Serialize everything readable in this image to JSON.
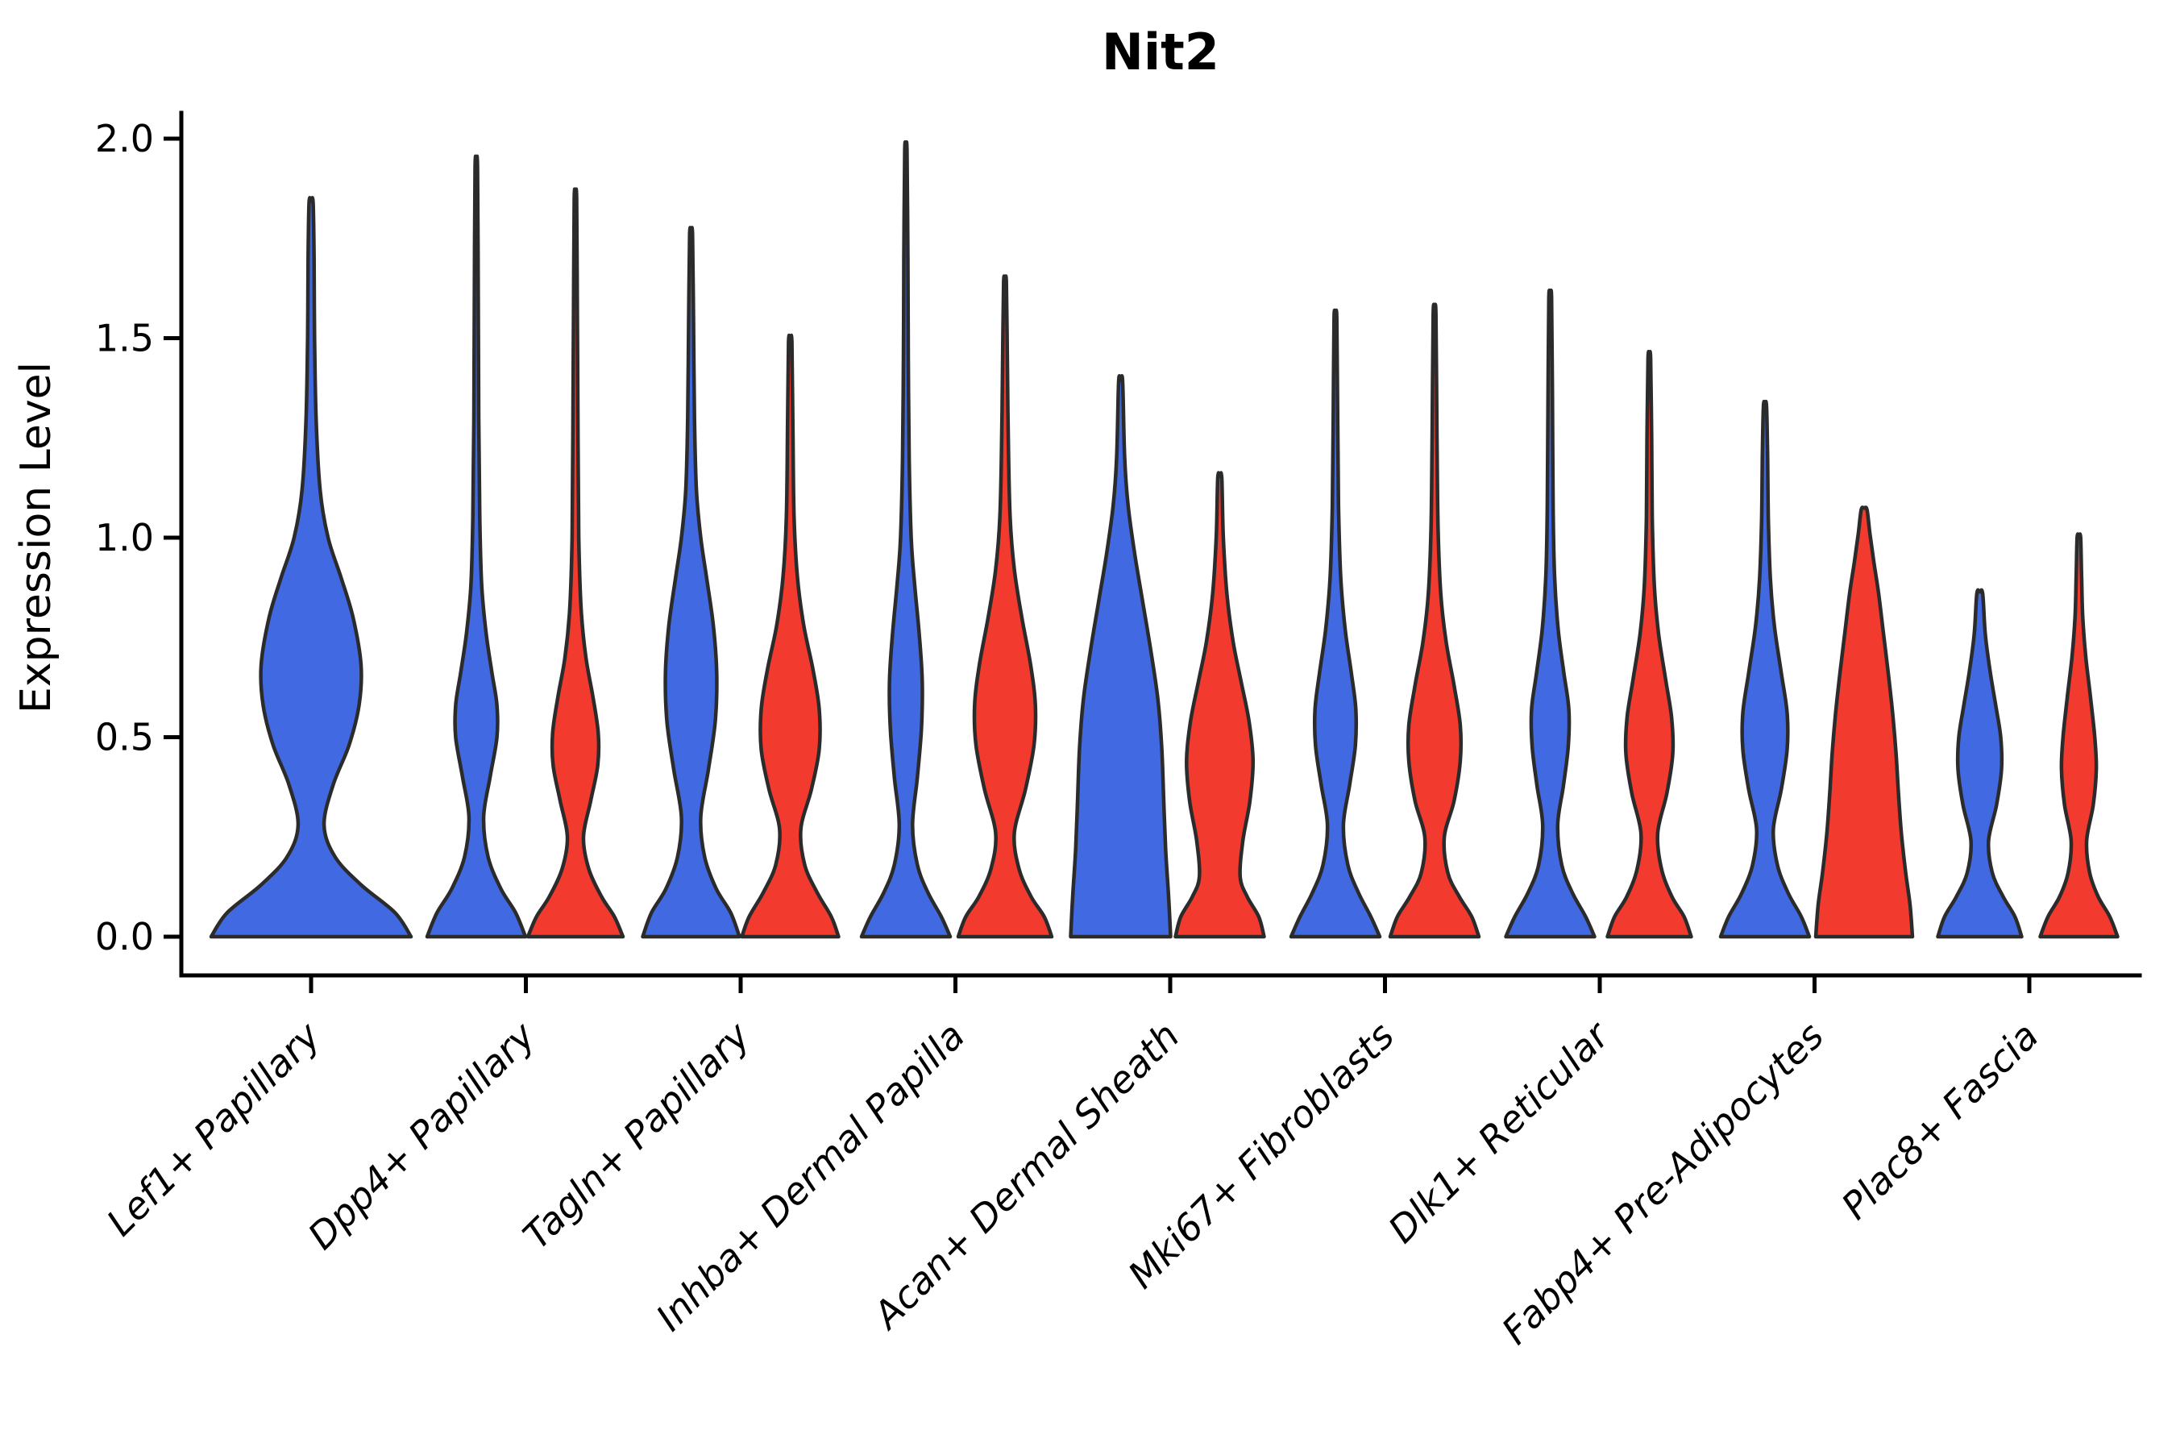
{
  "title": "Nit2",
  "axes": {
    "ylabel": "Expression Level",
    "yticks": [
      {
        "label": "0.0",
        "value": 0.0
      },
      {
        "label": "0.5",
        "value": 0.5
      },
      {
        "label": "1.0",
        "value": 1.0
      },
      {
        "label": "1.5",
        "value": 1.5
      },
      {
        "label": "2.0",
        "value": 2.0
      }
    ],
    "ylim": [
      0.0,
      2.065
    ],
    "grid": false,
    "legend": "none"
  },
  "colors": {
    "blue_fill": "#4169E1",
    "red_fill": "#F23A2E",
    "violin_outline": "#2B2B2B",
    "axis_color": "#000000",
    "background": "#FFFFFF"
  },
  "chart_data": {
    "type": "violin",
    "title": "Nit2",
    "ylabel": "Expression Level",
    "ylim": [
      0.0,
      2.0
    ],
    "legend_position": "none",
    "categories": [
      "Lef1+ Papillary",
      "Dpp4+ Papillary",
      "Tagln+ Papillary",
      "Inhba+ Dermal Papilla",
      "Acan+ Dermal Sheath",
      "Mki67+ Fibroblasts",
      "Dlk1+ Reticular",
      "Fabp4+ Pre-Adipocytes",
      "Plac8+ Fascia"
    ],
    "series": [
      {
        "name": "blue",
        "color": "#4169E1",
        "max_expression": [
          1.84,
          1.93,
          1.76,
          1.97,
          1.39,
          1.55,
          1.6,
          1.33,
          0.86
        ]
      },
      {
        "name": "red",
        "color": "#F23A2E",
        "max_expression": [
          null,
          1.85,
          1.49,
          1.64,
          1.15,
          1.56,
          1.45,
          1.07,
          1.0
        ]
      }
    ],
    "violins": [
      {
        "category": "Lef1+ Papillary",
        "slug": "lef1-papillary",
        "series": "blue",
        "side": "center",
        "tip": 1.84,
        "half_width": 124,
        "profile": [
          [
            0,
            1
          ],
          [
            0.06,
            0.84
          ],
          [
            0.13,
            0.5
          ],
          [
            0.2,
            0.24
          ],
          [
            0.28,
            0.13
          ],
          [
            0.38,
            0.22
          ],
          [
            0.48,
            0.38
          ],
          [
            0.58,
            0.48
          ],
          [
            0.68,
            0.5
          ],
          [
            0.8,
            0.42
          ],
          [
            0.9,
            0.3
          ],
          [
            1.0,
            0.17
          ],
          [
            1.12,
            0.09
          ],
          [
            1.3,
            0.05
          ],
          [
            1.5,
            0.035
          ],
          [
            1.7,
            0.03
          ],
          [
            1.84,
            0.02
          ]
        ]
      },
      {
        "category": "Dpp4+ Papillary",
        "slug": "dpp4-papillary",
        "series": "blue",
        "side": "left",
        "tip": 1.93,
        "half_width": 61,
        "profile": [
          [
            0,
            1
          ],
          [
            0.06,
            0.8
          ],
          [
            0.12,
            0.5
          ],
          [
            0.2,
            0.24
          ],
          [
            0.3,
            0.15
          ],
          [
            0.4,
            0.28
          ],
          [
            0.5,
            0.42
          ],
          [
            0.58,
            0.42
          ],
          [
            0.66,
            0.32
          ],
          [
            0.76,
            0.2
          ],
          [
            0.88,
            0.11
          ],
          [
            1.05,
            0.07
          ],
          [
            1.3,
            0.05
          ],
          [
            1.6,
            0.04
          ],
          [
            1.93,
            0.025
          ]
        ]
      },
      {
        "category": "Dpp4+ Papillary",
        "slug": "dpp4-papillary",
        "series": "red",
        "side": "right",
        "tip": 1.85,
        "half_width": 59,
        "profile": [
          [
            0,
            1
          ],
          [
            0.05,
            0.82
          ],
          [
            0.1,
            0.55
          ],
          [
            0.17,
            0.28
          ],
          [
            0.25,
            0.17
          ],
          [
            0.34,
            0.32
          ],
          [
            0.43,
            0.47
          ],
          [
            0.51,
            0.48
          ],
          [
            0.6,
            0.37
          ],
          [
            0.7,
            0.22
          ],
          [
            0.82,
            0.12
          ],
          [
            1.0,
            0.07
          ],
          [
            1.25,
            0.055
          ],
          [
            1.55,
            0.04
          ],
          [
            1.85,
            0.025
          ]
        ]
      },
      {
        "category": "Tagln+ Papillary",
        "slug": "tagln-papillary",
        "series": "blue",
        "side": "left",
        "tip": 1.76,
        "half_width": 60,
        "profile": [
          [
            0,
            1
          ],
          [
            0.06,
            0.82
          ],
          [
            0.12,
            0.52
          ],
          [
            0.2,
            0.28
          ],
          [
            0.3,
            0.2
          ],
          [
            0.42,
            0.36
          ],
          [
            0.54,
            0.5
          ],
          [
            0.66,
            0.53
          ],
          [
            0.78,
            0.46
          ],
          [
            0.9,
            0.32
          ],
          [
            1.0,
            0.2
          ],
          [
            1.12,
            0.11
          ],
          [
            1.3,
            0.07
          ],
          [
            1.55,
            0.05
          ],
          [
            1.76,
            0.03
          ]
        ]
      },
      {
        "category": "Tagln+ Papillary",
        "slug": "tagln-papillary",
        "series": "red",
        "side": "right",
        "tip": 1.49,
        "half_width": 60,
        "profile": [
          [
            0,
            1
          ],
          [
            0.05,
            0.85
          ],
          [
            0.11,
            0.56
          ],
          [
            0.18,
            0.3
          ],
          [
            0.27,
            0.22
          ],
          [
            0.37,
            0.44
          ],
          [
            0.47,
            0.6
          ],
          [
            0.57,
            0.6
          ],
          [
            0.67,
            0.47
          ],
          [
            0.78,
            0.28
          ],
          [
            0.9,
            0.15
          ],
          [
            1.05,
            0.08
          ],
          [
            1.28,
            0.055
          ],
          [
            1.49,
            0.035
          ]
        ]
      },
      {
        "category": "Inhba+ Dermal Papilla",
        "slug": "inhba-dermal-papilla",
        "series": "blue",
        "side": "left",
        "tip": 1.97,
        "half_width": 55,
        "profile": [
          [
            0,
            1
          ],
          [
            0.05,
            0.8
          ],
          [
            0.11,
            0.5
          ],
          [
            0.18,
            0.26
          ],
          [
            0.28,
            0.15
          ],
          [
            0.4,
            0.26
          ],
          [
            0.52,
            0.35
          ],
          [
            0.64,
            0.37
          ],
          [
            0.76,
            0.3
          ],
          [
            0.88,
            0.2
          ],
          [
            1.0,
            0.12
          ],
          [
            1.2,
            0.075
          ],
          [
            1.45,
            0.055
          ],
          [
            1.7,
            0.045
          ],
          [
            1.97,
            0.025
          ]
        ]
      },
      {
        "category": "Inhba+ Dermal Papilla",
        "slug": "inhba-dermal-papilla",
        "series": "red",
        "side": "right",
        "tip": 1.64,
        "half_width": 58,
        "profile": [
          [
            0,
            1
          ],
          [
            0.05,
            0.84
          ],
          [
            0.1,
            0.56
          ],
          [
            0.17,
            0.3
          ],
          [
            0.26,
            0.2
          ],
          [
            0.37,
            0.44
          ],
          [
            0.48,
            0.62
          ],
          [
            0.58,
            0.65
          ],
          [
            0.68,
            0.55
          ],
          [
            0.8,
            0.36
          ],
          [
            0.92,
            0.2
          ],
          [
            1.05,
            0.11
          ],
          [
            1.25,
            0.07
          ],
          [
            1.45,
            0.05
          ],
          [
            1.64,
            0.03
          ]
        ]
      },
      {
        "category": "Acan+ Dermal Sheath",
        "slug": "acan-dermal-sheath",
        "series": "blue",
        "side": "left",
        "tip": 1.39,
        "half_width": 62,
        "profile": [
          [
            0,
            1
          ],
          [
            0.1,
            0.96
          ],
          [
            0.22,
            0.9
          ],
          [
            0.35,
            0.86
          ],
          [
            0.48,
            0.82
          ],
          [
            0.6,
            0.74
          ],
          [
            0.72,
            0.6
          ],
          [
            0.84,
            0.44
          ],
          [
            0.96,
            0.28
          ],
          [
            1.08,
            0.15
          ],
          [
            1.2,
            0.08
          ],
          [
            1.39,
            0.04
          ]
        ]
      },
      {
        "category": "Acan+ Dermal Sheath",
        "slug": "acan-dermal-sheath",
        "series": "red",
        "side": "right",
        "tip": 1.15,
        "half_width": 55,
        "profile": [
          [
            0,
            1
          ],
          [
            0.05,
            0.88
          ],
          [
            0.1,
            0.62
          ],
          [
            0.15,
            0.46
          ],
          [
            0.24,
            0.52
          ],
          [
            0.34,
            0.68
          ],
          [
            0.44,
            0.75
          ],
          [
            0.54,
            0.66
          ],
          [
            0.64,
            0.48
          ],
          [
            0.74,
            0.3
          ],
          [
            0.86,
            0.16
          ],
          [
            1.0,
            0.08
          ],
          [
            1.15,
            0.045
          ]
        ]
      },
      {
        "category": "Mki67+ Fibroblasts",
        "slug": "mki67-fibroblasts",
        "series": "blue",
        "side": "left",
        "tip": 1.55,
        "half_width": 55,
        "profile": [
          [
            0,
            1
          ],
          [
            0.05,
            0.8
          ],
          [
            0.11,
            0.52
          ],
          [
            0.18,
            0.28
          ],
          [
            0.28,
            0.18
          ],
          [
            0.38,
            0.32
          ],
          [
            0.48,
            0.45
          ],
          [
            0.57,
            0.46
          ],
          [
            0.66,
            0.36
          ],
          [
            0.77,
            0.22
          ],
          [
            0.9,
            0.12
          ],
          [
            1.08,
            0.07
          ],
          [
            1.3,
            0.05
          ],
          [
            1.55,
            0.03
          ]
        ]
      },
      {
        "category": "Mki67+ Fibroblasts",
        "slug": "mki67-fibroblasts",
        "series": "red",
        "side": "right",
        "tip": 1.56,
        "half_width": 55,
        "profile": [
          [
            0,
            1
          ],
          [
            0.05,
            0.84
          ],
          [
            0.1,
            0.56
          ],
          [
            0.16,
            0.3
          ],
          [
            0.25,
            0.22
          ],
          [
            0.34,
            0.44
          ],
          [
            0.44,
            0.58
          ],
          [
            0.53,
            0.58
          ],
          [
            0.63,
            0.44
          ],
          [
            0.74,
            0.26
          ],
          [
            0.86,
            0.14
          ],
          [
            1.02,
            0.08
          ],
          [
            1.25,
            0.055
          ],
          [
            1.56,
            0.03
          ]
        ]
      },
      {
        "category": "Dlk1+ Reticular",
        "slug": "dlk1-reticular",
        "series": "blue",
        "side": "left",
        "tip": 1.6,
        "half_width": 55,
        "profile": [
          [
            0,
            1
          ],
          [
            0.05,
            0.8
          ],
          [
            0.11,
            0.5
          ],
          [
            0.18,
            0.26
          ],
          [
            0.28,
            0.17
          ],
          [
            0.38,
            0.3
          ],
          [
            0.48,
            0.41
          ],
          [
            0.57,
            0.42
          ],
          [
            0.66,
            0.31
          ],
          [
            0.77,
            0.18
          ],
          [
            0.9,
            0.1
          ],
          [
            1.08,
            0.065
          ],
          [
            1.35,
            0.05
          ],
          [
            1.6,
            0.03
          ]
        ]
      },
      {
        "category": "Dlk1+ Reticular",
        "slug": "dlk1-reticular",
        "series": "red",
        "side": "right",
        "tip": 1.45,
        "half_width": 52,
        "profile": [
          [
            0,
            1
          ],
          [
            0.05,
            0.83
          ],
          [
            0.1,
            0.54
          ],
          [
            0.17,
            0.29
          ],
          [
            0.26,
            0.2
          ],
          [
            0.36,
            0.42
          ],
          [
            0.46,
            0.56
          ],
          [
            0.55,
            0.53
          ],
          [
            0.65,
            0.38
          ],
          [
            0.76,
            0.22
          ],
          [
            0.88,
            0.12
          ],
          [
            1.05,
            0.07
          ],
          [
            1.25,
            0.055
          ],
          [
            1.45,
            0.03
          ]
        ]
      },
      {
        "category": "Fabp4+ Pre-Adipocytes",
        "slug": "fabp4-pre-adipocytes",
        "series": "blue",
        "side": "left",
        "tip": 1.33,
        "half_width": 55,
        "profile": [
          [
            0,
            1
          ],
          [
            0.05,
            0.82
          ],
          [
            0.11,
            0.52
          ],
          [
            0.18,
            0.28
          ],
          [
            0.27,
            0.19
          ],
          [
            0.37,
            0.37
          ],
          [
            0.47,
            0.5
          ],
          [
            0.56,
            0.5
          ],
          [
            0.66,
            0.37
          ],
          [
            0.78,
            0.21
          ],
          [
            0.9,
            0.12
          ],
          [
            1.05,
            0.075
          ],
          [
            1.2,
            0.06
          ],
          [
            1.33,
            0.035
          ]
        ]
      },
      {
        "category": "Fabp4+ Pre-Adipocytes",
        "slug": "fabp4-pre-adipocytes",
        "series": "red",
        "side": "right",
        "tip": 1.07,
        "half_width": 60,
        "profile": [
          [
            0,
            1
          ],
          [
            0.08,
            0.95
          ],
          [
            0.16,
            0.86
          ],
          [
            0.26,
            0.77
          ],
          [
            0.36,
            0.71
          ],
          [
            0.46,
            0.66
          ],
          [
            0.56,
            0.59
          ],
          [
            0.66,
            0.5
          ],
          [
            0.76,
            0.4
          ],
          [
            0.86,
            0.3
          ],
          [
            0.94,
            0.2
          ],
          [
            1.01,
            0.12
          ],
          [
            1.07,
            0.06
          ]
        ]
      },
      {
        "category": "Plac8+ Fascia",
        "slug": "plac8-fascia",
        "series": "blue",
        "side": "left",
        "tip": 0.86,
        "half_width": 52,
        "profile": [
          [
            0,
            1
          ],
          [
            0.05,
            0.84
          ],
          [
            0.1,
            0.56
          ],
          [
            0.16,
            0.3
          ],
          [
            0.24,
            0.21
          ],
          [
            0.33,
            0.4
          ],
          [
            0.42,
            0.52
          ],
          [
            0.5,
            0.5
          ],
          [
            0.58,
            0.38
          ],
          [
            0.67,
            0.24
          ],
          [
            0.76,
            0.13
          ],
          [
            0.86,
            0.07
          ]
        ]
      },
      {
        "category": "Plac8+ Fascia",
        "slug": "plac8-fascia",
        "series": "red",
        "side": "right",
        "tip": 1.0,
        "half_width": 48,
        "profile": [
          [
            0,
            1
          ],
          [
            0.05,
            0.8
          ],
          [
            0.1,
            0.5
          ],
          [
            0.16,
            0.28
          ],
          [
            0.24,
            0.2
          ],
          [
            0.33,
            0.37
          ],
          [
            0.42,
            0.45
          ],
          [
            0.5,
            0.41
          ],
          [
            0.6,
            0.3
          ],
          [
            0.7,
            0.18
          ],
          [
            0.8,
            0.1
          ],
          [
            0.9,
            0.07
          ],
          [
            1.0,
            0.045
          ]
        ]
      }
    ]
  }
}
